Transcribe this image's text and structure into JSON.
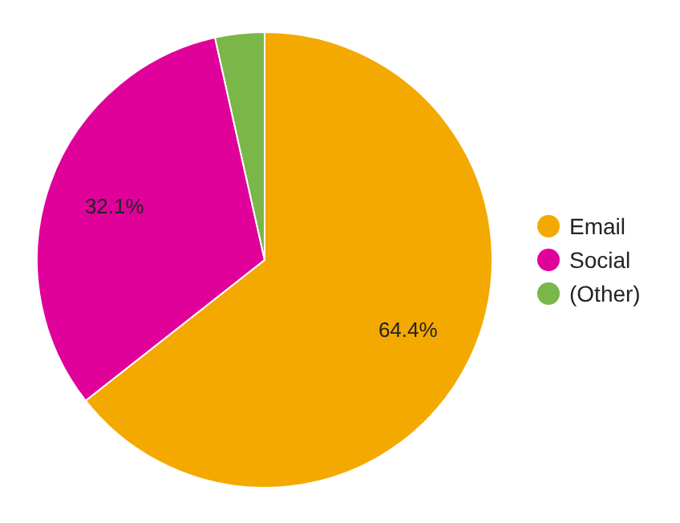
{
  "chart_data": {
    "type": "pie",
    "categories": [
      "Email",
      "Social",
      "(Other)"
    ],
    "values": [
      64.4,
      32.1,
      3.5
    ],
    "colors": [
      "#f4a900",
      "#e0009a",
      "#7ab648"
    ],
    "value_labels": [
      "64.4%",
      "32.1%",
      null
    ],
    "legend": "right"
  }
}
